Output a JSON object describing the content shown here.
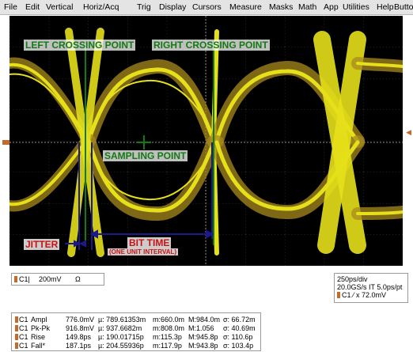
{
  "menu": {
    "items": [
      "File",
      "Edit",
      "Vertical",
      "Horiz/Acq",
      "Trig",
      "Display",
      "Cursors",
      "Measure",
      "Masks",
      "Math",
      "App",
      "Utilities",
      "Help",
      "Buttons"
    ]
  },
  "annotations": {
    "left_crossing": "LEFT CROSSING POINT",
    "right_crossing": "RIGHT CROSSING POINT",
    "sampling_point": "SAMPLING POINT",
    "jitter": "JITTER",
    "bit_time": "BIT TIME",
    "bit_time_sub": "(ONE UNIT INTERVAL)"
  },
  "colors": {
    "trace": "#e6e01a",
    "trace_dark": "#a88a1c",
    "label_green": "#127a12",
    "label_red": "#cc1111",
    "label_blue": "#1a1a8c",
    "channel": "#c46a2a"
  },
  "channel_readout": {
    "channel": "C1",
    "scale": "200mV",
    "coupling": "Ω"
  },
  "timebase": {
    "scale": "250ps/div",
    "sample": "20.0GS/s IT 5.0ps/pt",
    "trigger": "C1 ⁄ x 72.0mV"
  },
  "measurements": [
    {
      "ch": "C1",
      "name": "Ampl",
      "value": "776.0mV",
      "mean": "µ: 789.61353m",
      "min": "m:660.0m",
      "max": "M:984.0m",
      "sd": "σ: 66.72m"
    },
    {
      "ch": "C1",
      "name": "Pk-Pk",
      "value": "916.8mV",
      "mean": "µ: 937.6682m",
      "min": "m:808.0m",
      "max": "M:1.056",
      "sd": "σ: 40.69m"
    },
    {
      "ch": "C1",
      "name": "Rise",
      "value": "149.8ps",
      "mean": "µ: 190.01715p",
      "min": "m:115.3p",
      "max": "M:945.8p",
      "sd": "σ: 110.6p"
    },
    {
      "ch": "C1",
      "name": "Fall*",
      "value": "187.1ps",
      "mean": "µ: 204.55936p",
      "min": "m:117.9p",
      "max": "M:943.8p",
      "sd": "σ: 103.4p"
    }
  ]
}
